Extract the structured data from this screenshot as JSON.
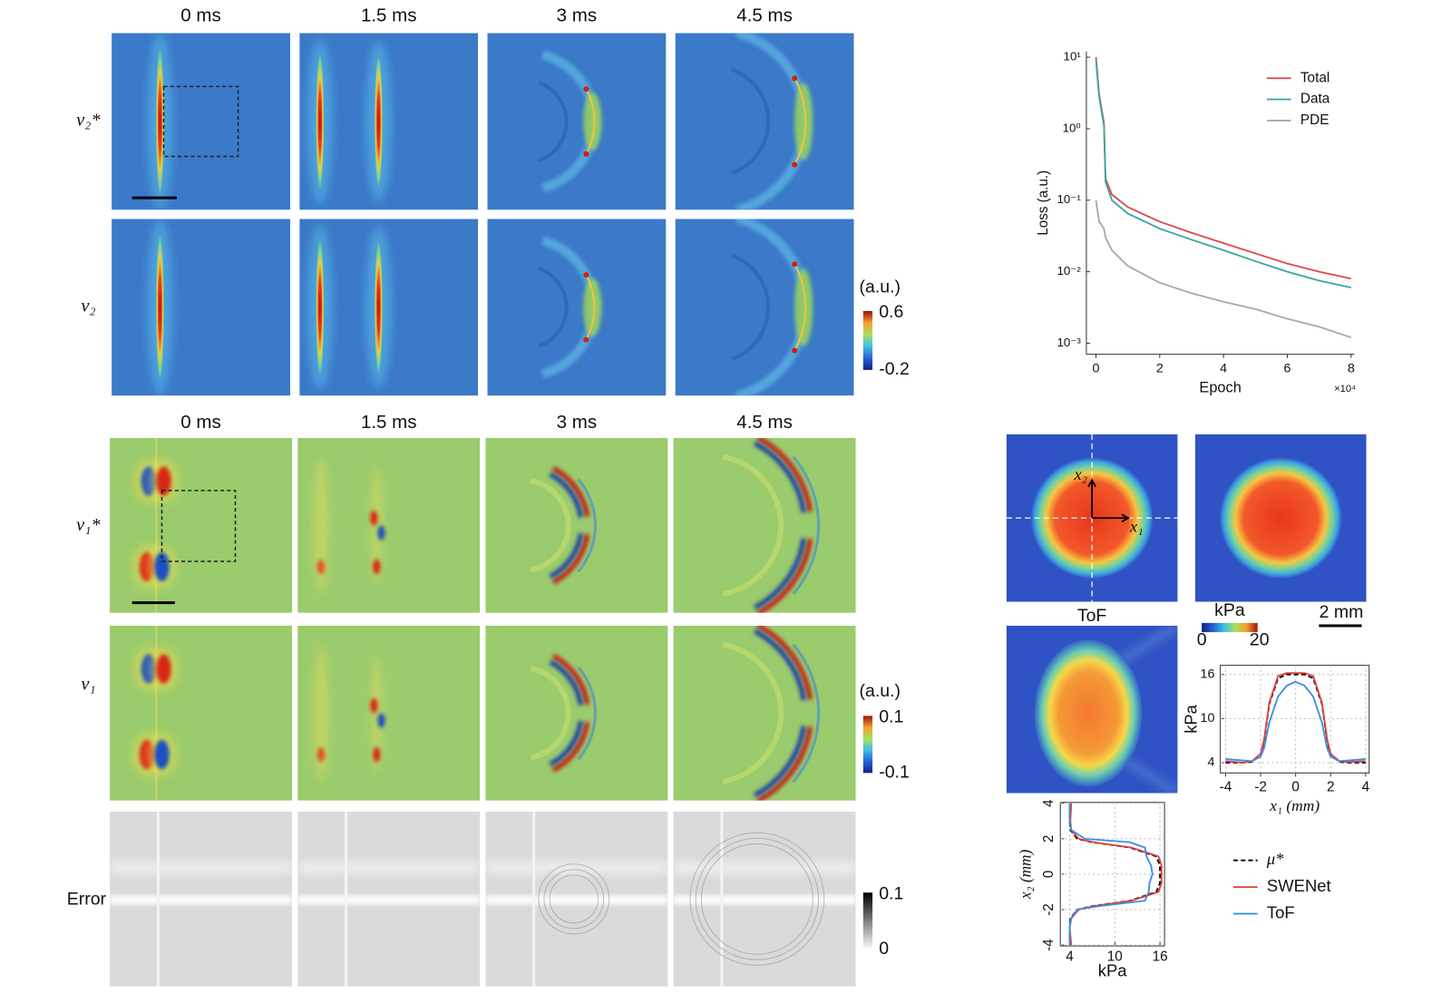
{
  "panels": {
    "top": {
      "columns": [
        "0 ms",
        "1.5 ms",
        "3 ms",
        "4.5 ms"
      ],
      "rows": [
        "v₂*",
        "v₂"
      ],
      "colorbar": {
        "unit": "(a.u.)",
        "max": 0.6,
        "min": -0.2
      }
    },
    "bottom": {
      "columns": [
        "0 ms",
        "1.5 ms",
        "3 ms",
        "4.5 ms"
      ],
      "rows": [
        "v₁*",
        "v₁",
        "Error"
      ],
      "colorbar": {
        "unit": "(a.u.)",
        "max": 0.1,
        "min": -0.1
      },
      "error_colorbar": {
        "max": 0.1,
        "min": 0
      }
    },
    "maps": {
      "axis_labels": [
        "x₁",
        "x₂"
      ],
      "tof_label": "ToF",
      "colorbar": {
        "unit": "kPa",
        "min": 0,
        "max": 20
      },
      "scale_bar": "2 mm"
    }
  },
  "chart_data": [
    {
      "type": "line",
      "y_label": "Loss (a.u.)",
      "x_label": "Epoch",
      "x_multiplier": "×10⁴",
      "log_y": true,
      "legend": "upper right",
      "x": [
        0,
        0.1,
        0.25,
        0.3,
        0.5,
        1,
        2,
        3,
        4,
        5,
        6,
        7,
        8
      ],
      "series": [
        {
          "name": "Total",
          "color": "#e0474c",
          "values": [
            10,
            3,
            1.2,
            0.2,
            0.12,
            0.08,
            0.05,
            0.035,
            0.025,
            0.018,
            0.013,
            0.01,
            0.008
          ]
        },
        {
          "name": "Data",
          "color": "#3aa6a0",
          "values": [
            9,
            2.8,
            1.1,
            0.18,
            0.1,
            0.065,
            0.04,
            0.028,
            0.02,
            0.014,
            0.01,
            0.0075,
            0.006
          ]
        },
        {
          "name": "PDE",
          "color": "#a8a8a8",
          "values": [
            0.1,
            0.05,
            0.04,
            0.03,
            0.02,
            0.012,
            0.007,
            0.005,
            0.0038,
            0.003,
            0.0022,
            0.0017,
            0.0012
          ]
        }
      ],
      "xlim": [
        -0.3,
        8.1
      ],
      "ylim": [
        0.0007,
        12
      ],
      "xticks": [
        0,
        2,
        4,
        6,
        8
      ],
      "yticks": [
        {
          "value": 0.001,
          "label": "10⁻³"
        },
        {
          "value": 0.01,
          "label": "10⁻²"
        },
        {
          "value": 0.1,
          "label": "10⁻¹"
        },
        {
          "value": 1,
          "label": "10⁰"
        },
        {
          "value": 10,
          "label": "10¹"
        }
      ]
    },
    {
      "type": "line",
      "y_label": "kPa",
      "x_label": "x₁ (mm)",
      "grid": true,
      "x": [
        -4,
        -3,
        -2.5,
        -2,
        -1.8,
        -1.5,
        -1,
        -0.5,
        0,
        0.5,
        1,
        1.5,
        1.8,
        2,
        2.5,
        3,
        4
      ],
      "series": [
        {
          "name": "μ*",
          "color": "#000000",
          "dash": true,
          "values": [
            4,
            4,
            4.1,
            5,
            7,
            12,
            15.5,
            16,
            16,
            16,
            15.5,
            12,
            7,
            5,
            4.1,
            4,
            4
          ]
        },
        {
          "name": "SWENet",
          "color": "#e0403a",
          "values": [
            4.2,
            4,
            4.2,
            5.2,
            7.2,
            12.2,
            15.8,
            16.2,
            16.2,
            16.2,
            15.8,
            12.2,
            7.2,
            5.2,
            4.2,
            4.1,
            4.2
          ]
        },
        {
          "name": "ToF",
          "color": "#3a8ee6",
          "values": [
            4.5,
            4.3,
            4.2,
            4.8,
            6,
            9.5,
            13,
            14.5,
            15,
            14.5,
            13,
            9.5,
            6,
            4.8,
            4.2,
            4.3,
            4.5
          ]
        }
      ],
      "xlim": [
        -4.3,
        4.2
      ],
      "ylim": [
        2.6,
        17.25
      ],
      "xticks": [
        -4,
        -2,
        0,
        2,
        4
      ],
      "yticks": [
        4,
        10,
        16
      ]
    },
    {
      "type": "line",
      "orientation": "vertical",
      "x_label": "x₂ (mm)",
      "y_label": "kPa",
      "grid": true,
      "x": [
        -4,
        -3,
        -2.5,
        -2,
        -1.8,
        -1.5,
        -1,
        -0.5,
        0,
        0.5,
        1,
        1.5,
        1.8,
        2,
        2.5,
        3,
        4
      ],
      "series": [
        {
          "color": "#000000",
          "dash": true,
          "values": [
            4,
            4,
            4.1,
            5,
            7,
            12,
            15.5,
            16,
            16,
            16,
            15.5,
            12,
            7,
            5,
            4.1,
            4,
            4
          ]
        },
        {
          "color": "#e0403a",
          "values": [
            4.2,
            4,
            4.2,
            5.2,
            7.2,
            12.2,
            15.8,
            16.2,
            16.2,
            16.2,
            15.8,
            12.2,
            7.2,
            5.2,
            4.2,
            4.1,
            4.2
          ]
        },
        {
          "color": "#3a8ee6",
          "values": [
            4,
            4,
            4.2,
            5,
            8,
            14,
            14.5,
            14.6,
            15,
            14.8,
            14.2,
            14,
            12,
            6,
            4.2,
            4,
            4
          ]
        }
      ],
      "xlim": [
        -4.05,
        4.05
      ],
      "ylim": [
        2.76,
        16.6
      ],
      "xticks": [
        -4,
        -2,
        0,
        2,
        4
      ],
      "yticks": [
        4,
        10,
        16
      ]
    }
  ]
}
